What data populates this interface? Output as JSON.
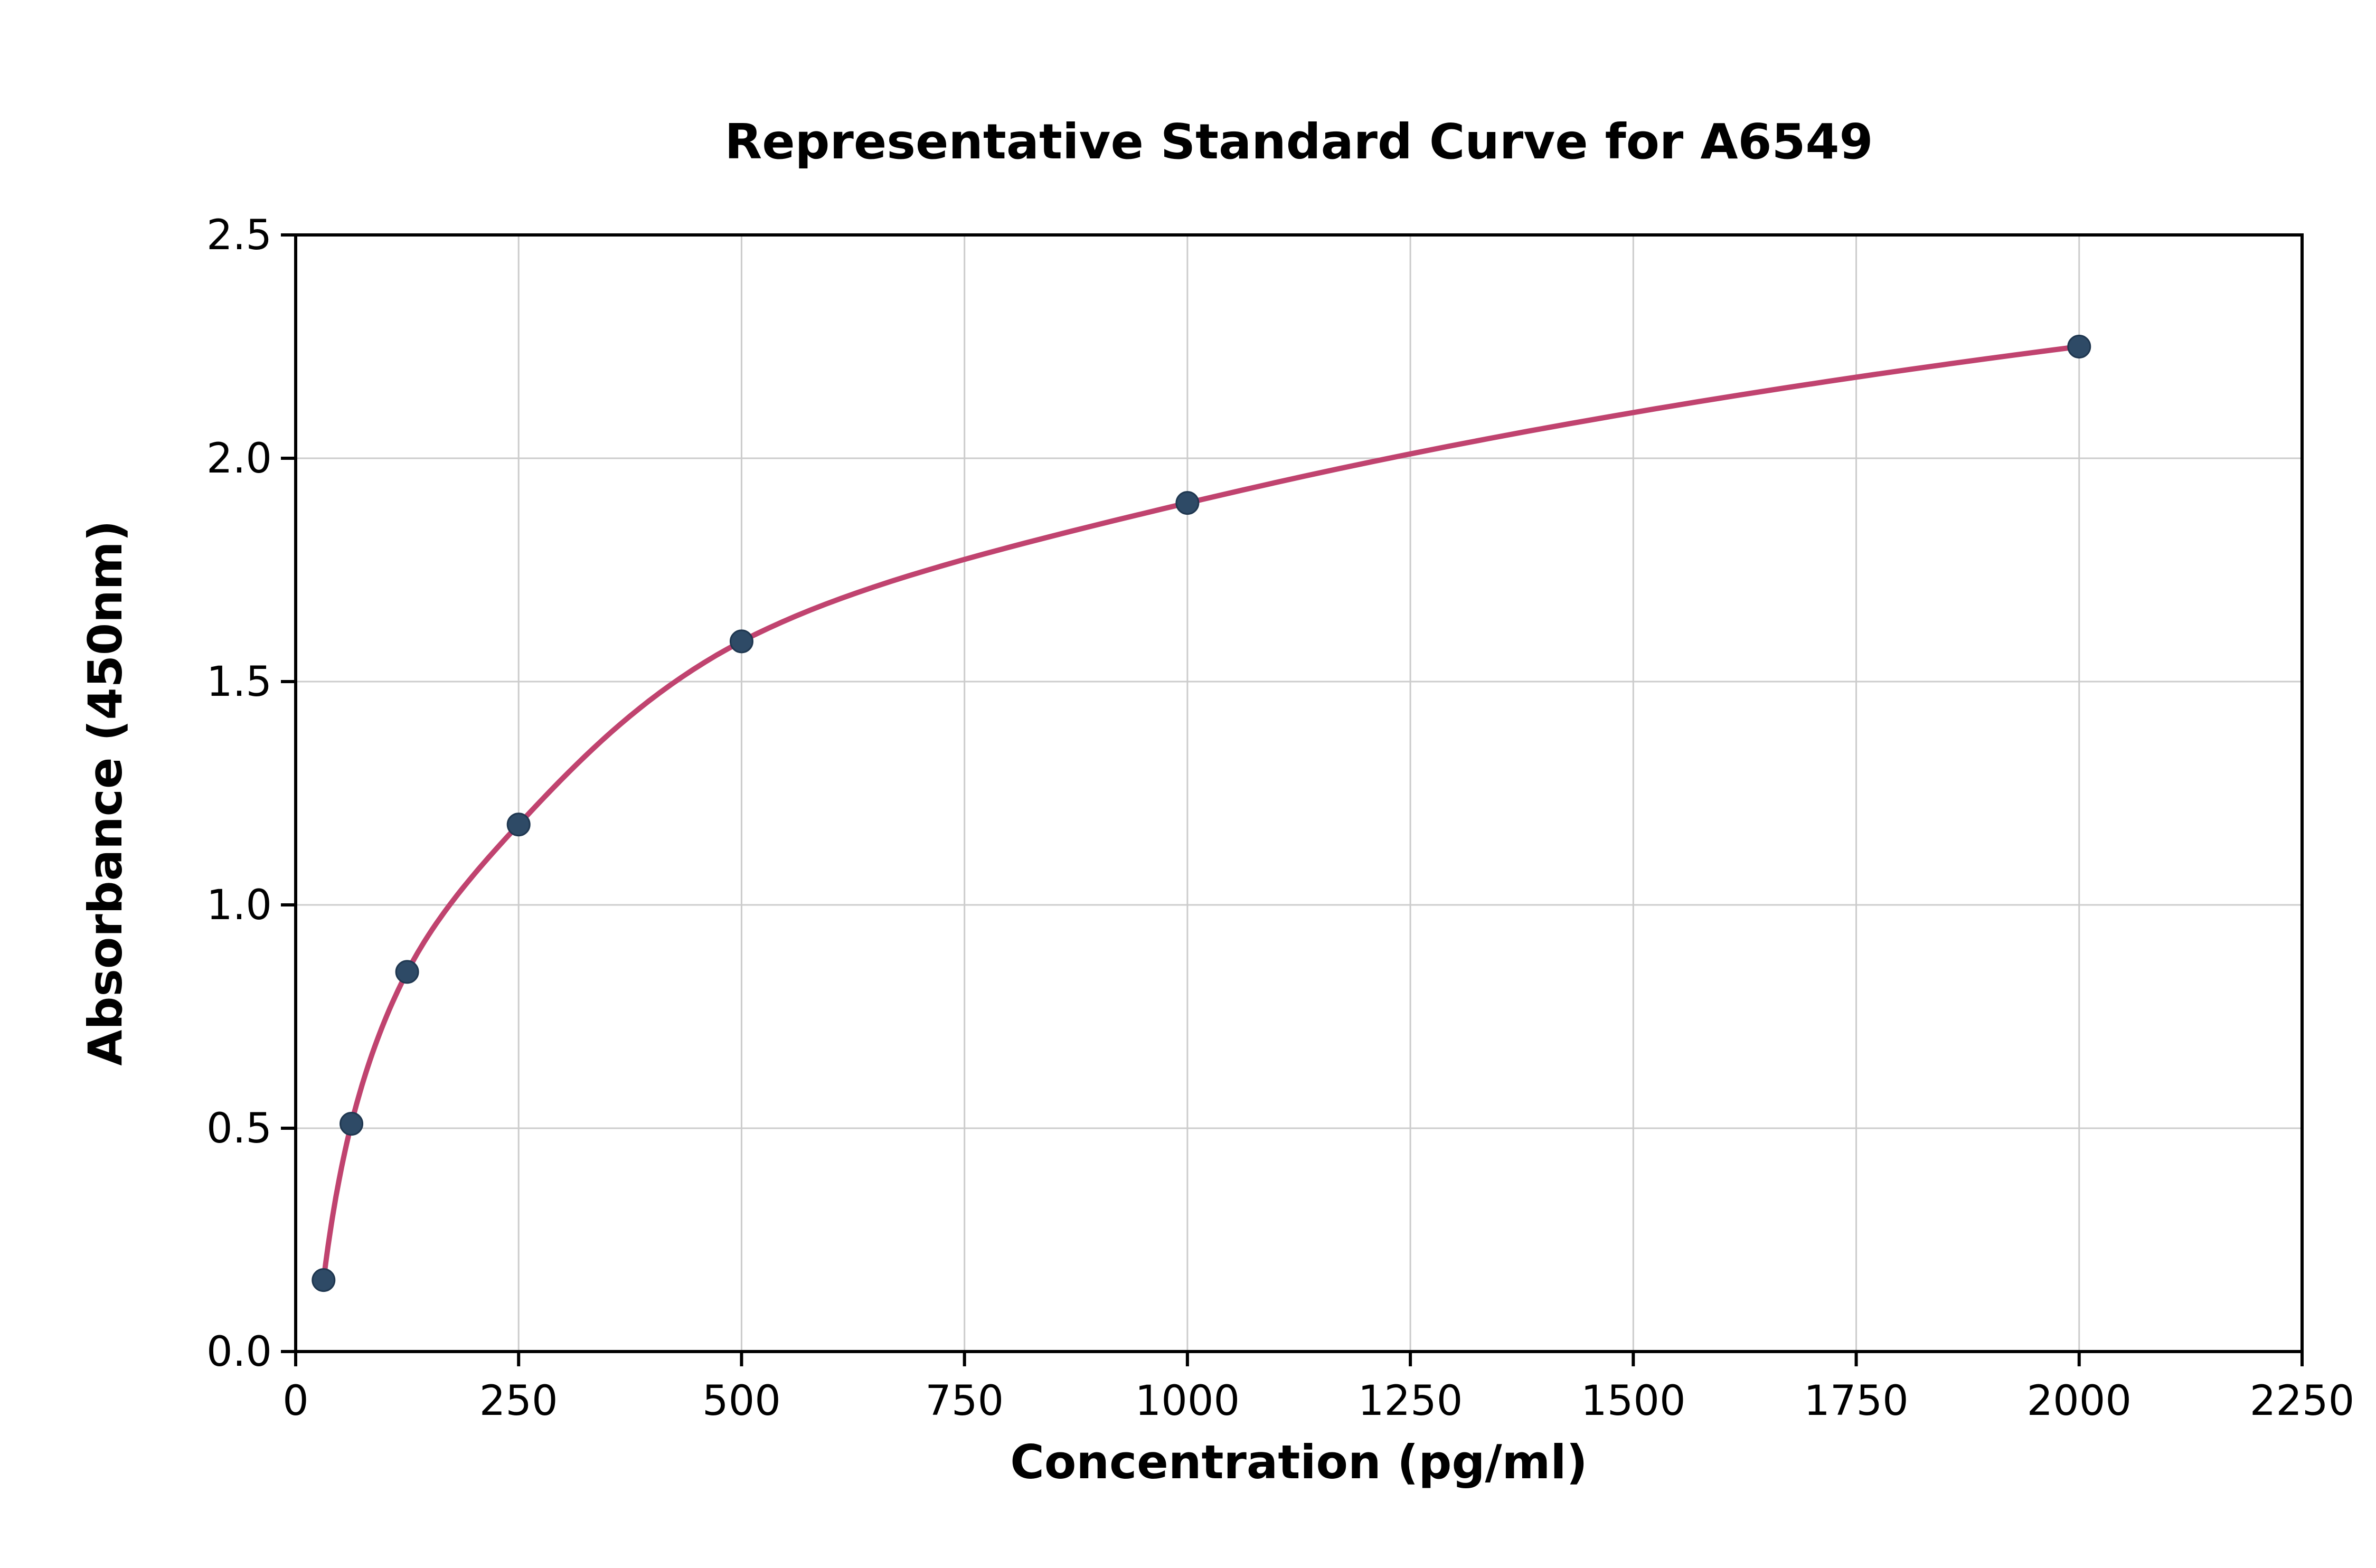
{
  "chart_data": {
    "type": "scatter",
    "title": "Representative Standard Curve for A6549",
    "xlabel": "Concentration (pg/ml)",
    "ylabel": "Absorbance (450nm)",
    "x": [
      31.25,
      62.5,
      125,
      250,
      500,
      1000,
      2000
    ],
    "y": [
      0.16,
      0.51,
      0.85,
      1.18,
      1.59,
      1.9,
      2.25
    ],
    "fit_curve": "smooth saturating curve through all points (4PL-style), drawn from first to last point",
    "xlim": [
      0,
      2250
    ],
    "ylim": [
      0,
      2.5
    ],
    "xticks": [
      0,
      250,
      500,
      750,
      1000,
      1250,
      1500,
      1750,
      2000,
      2250
    ],
    "xtick_labels": [
      "0",
      "250",
      "500",
      "750",
      "1000",
      "1250",
      "1500",
      "1750",
      "2000",
      "2250"
    ],
    "yticks": [
      0,
      0.5,
      1.0,
      1.5,
      2.0,
      2.5
    ],
    "ytick_labels": [
      "0.0",
      "0.5",
      "1.0",
      "1.5",
      "2.0",
      "2.5"
    ],
    "grid": true,
    "legend_position": "none",
    "colors": {
      "curve": "#c0436f",
      "marker_fill": "#2e4a66",
      "marker_edge": "#1f3750",
      "grid": "#cccccc",
      "spine": "#000000",
      "background": "#ffffff"
    }
  }
}
